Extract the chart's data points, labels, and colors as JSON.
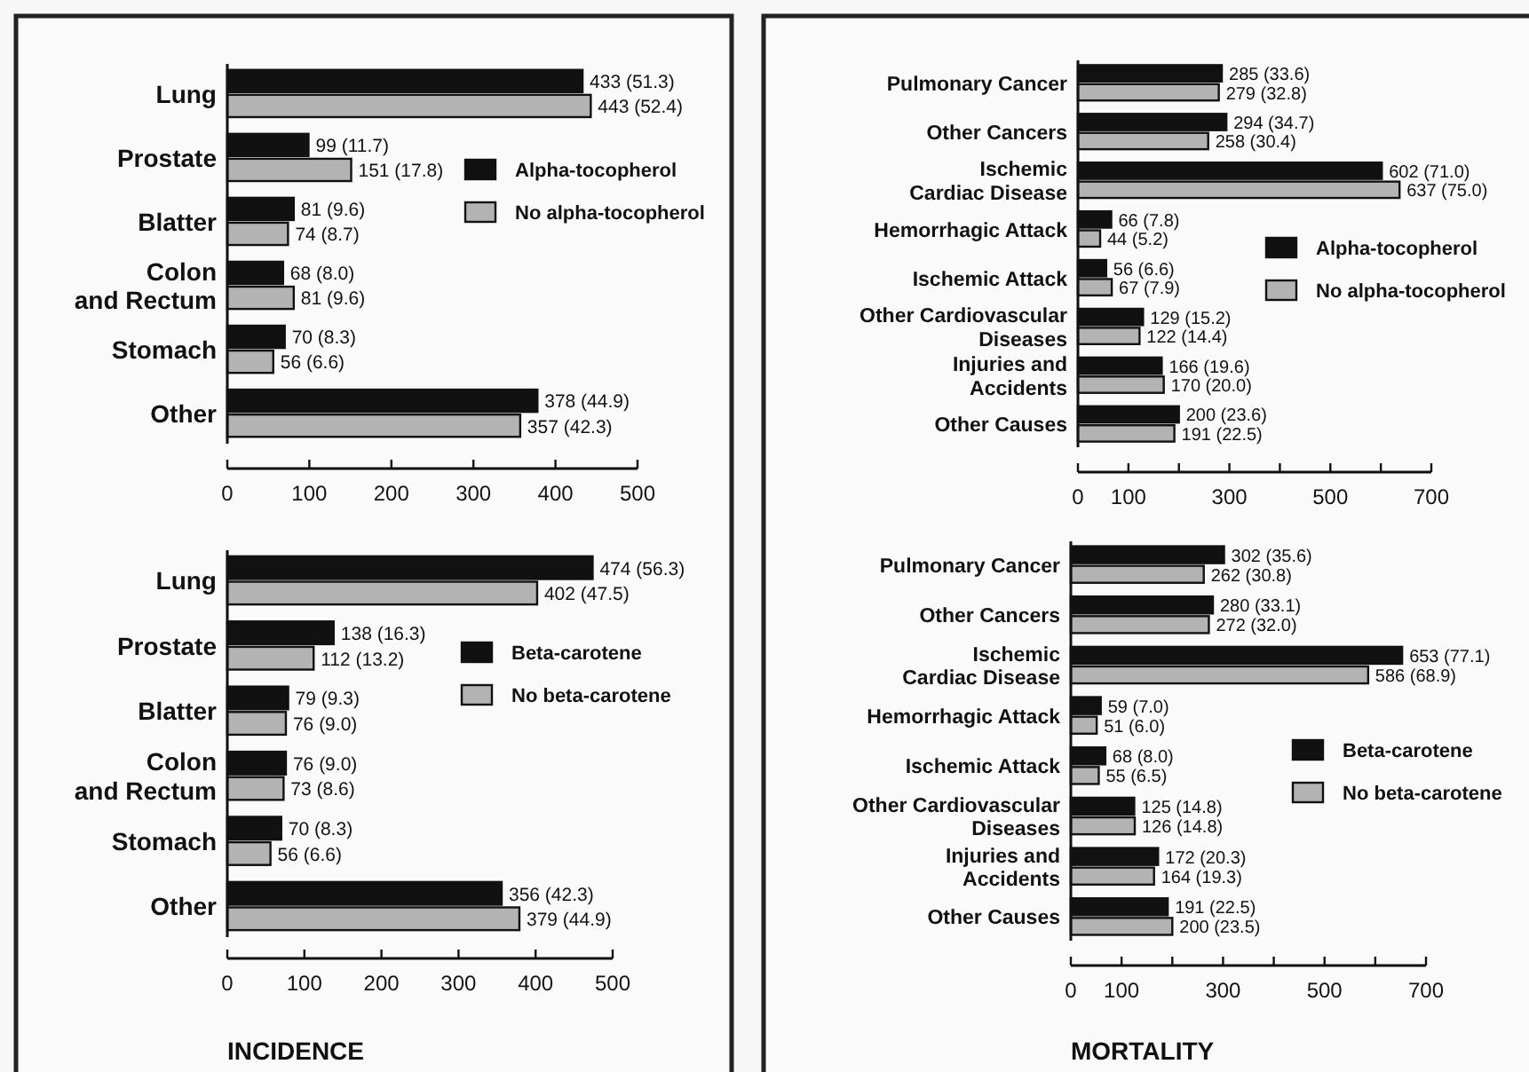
{
  "chart_data": [
    {
      "type": "bar",
      "orientation": "horizontal",
      "categories": [
        "Lung",
        "Prostate",
        "Blatter",
        "Colon\nand Rectum",
        "Stomach",
        "Other"
      ],
      "series": [
        {
          "name": "Alpha-tocopherol",
          "color": "#111111",
          "values": [
            433,
            99,
            81,
            68,
            70,
            378
          ],
          "value_labels": [
            "433 (51.3)",
            "99 (11.7)",
            "81 (9.6)",
            "68 (8.0)",
            "70 (8.3)",
            "378 (44.9)"
          ]
        },
        {
          "name": "No alpha-tocopherol",
          "color": "#b3b3b3",
          "values": [
            443,
            151,
            74,
            81,
            56,
            357
          ],
          "value_labels": [
            "443 (52.4)",
            "151 (17.8)",
            "74 (8.7)",
            "81 (9.6)",
            "56 (6.6)",
            "357 (42.3)"
          ]
        }
      ],
      "xlim": [
        0,
        500
      ],
      "xticks": [
        0,
        100,
        200,
        300,
        400,
        500
      ],
      "legend": "right"
    },
    {
      "type": "bar",
      "orientation": "horizontal",
      "categories": [
        "Pulmonary Cancer",
        "Other Cancers",
        "Ischemic\nCardiac Disease",
        "Hemorrhagic Attack",
        "Ischemic Attack",
        "Other Cardiovascular\nDiseases",
        "Injuries and\nAccidents",
        "Other Causes"
      ],
      "series": [
        {
          "name": "Alpha-tocopherol",
          "color": "#111111",
          "values": [
            285,
            294,
            602,
            66,
            56,
            129,
            166,
            200
          ],
          "value_labels": [
            "285 (33.6)",
            "294 (34.7)",
            "602 (71.0)",
            "66 (7.8)",
            "56 (6.6)",
            "129 (15.2)",
            "166 (19.6)",
            "200 (23.6)"
          ]
        },
        {
          "name": "No alpha-tocopherol",
          "color": "#b3b3b3",
          "values": [
            279,
            258,
            637,
            44,
            67,
            122,
            170,
            191
          ],
          "value_labels": [
            "279 (32.8)",
            "258 (30.4)",
            "637 (75.0)",
            "44 (5.2)",
            "67 (7.9)",
            "122 (14.4)",
            "170 (20.0)",
            "191 (22.5)"
          ]
        }
      ],
      "xlim": [
        0,
        700
      ],
      "xticks": [
        0,
        100,
        {
          "value": 200,
          "label": null
        },
        300,
        {
          "value": 400,
          "label": null
        },
        500,
        {
          "value": 600,
          "label": null
        },
        700
      ],
      "legend": "right"
    },
    {
      "type": "bar",
      "orientation": "horizontal",
      "categories": [
        "Lung",
        "Prostate",
        "Blatter",
        "Colon\nand Rectum",
        "Stomach",
        "Other"
      ],
      "series": [
        {
          "name": "Beta-carotene",
          "color": "#111111",
          "values": [
            474,
            138,
            79,
            76,
            70,
            356
          ],
          "value_labels": [
            "474 (56.3)",
            "138 (16.3)",
            "79 (9.3)",
            "76 (9.0)",
            "70 (8.3)",
            "356 (42.3)"
          ]
        },
        {
          "name": "No beta-carotene",
          "color": "#b3b3b3",
          "values": [
            402,
            112,
            76,
            73,
            56,
            379
          ],
          "value_labels": [
            "402 (47.5)",
            "112 (13.2)",
            "76 (9.0)",
            "73 (8.6)",
            "56 (6.6)",
            "379 (44.9)"
          ]
        }
      ],
      "xlim": [
        0,
        500
      ],
      "xticks": [
        0,
        100,
        200,
        300,
        400,
        500
      ],
      "legend": "right",
      "annotations": [
        "INCIDENCE"
      ]
    },
    {
      "type": "bar",
      "orientation": "horizontal",
      "categories": [
        "Pulmonary Cancer",
        "Other Cancers",
        "Ischemic\nCardiac Disease",
        "Hemorrhagic Attack",
        "Ischemic Attack",
        "Other Cardiovascular\nDiseases",
        "Injuries and\nAccidents",
        "Other Causes"
      ],
      "series": [
        {
          "name": "Beta-carotene",
          "color": "#111111",
          "values": [
            302,
            280,
            653,
            59,
            68,
            125,
            172,
            191
          ],
          "value_labels": [
            "302 (35.6)",
            "280 (33.1)",
            "653 (77.1)",
            "59 (7.0)",
            "68 (8.0)",
            "125 (14.8)",
            "172 (20.3)",
            "191 (22.5)"
          ]
        },
        {
          "name": "No beta-carotene",
          "color": "#b3b3b3",
          "values": [
            262,
            272,
            586,
            51,
            55,
            126,
            164,
            200
          ],
          "value_labels": [
            "262 (30.8)",
            "272 (32.0)",
            "586 (68.9)",
            "51 (6.0)",
            "55 (6.5)",
            "126 (14.8)",
            "164 (19.3)",
            "200 (23.5)"
          ]
        }
      ],
      "xlim": [
        0,
        700
      ],
      "xticks": [
        0,
        100,
        {
          "value": 200,
          "label": null
        },
        300,
        {
          "value": 400,
          "label": null
        },
        500,
        {
          "value": 600,
          "label": null
        },
        700
      ],
      "legend": "right",
      "annotations": [
        "MORTALITY"
      ]
    }
  ]
}
